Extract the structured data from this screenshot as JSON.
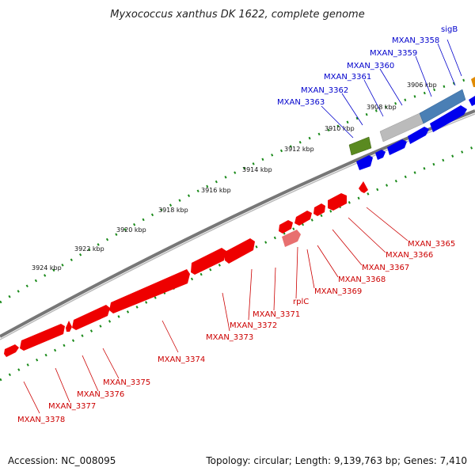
{
  "title": "Myxococcus xanthus DK 1622, complete genome",
  "footer": {
    "accession": "Accession: NC_008095",
    "stats": "Topology: circular; Length: 9,139,763 bp; Genes: 7,410"
  },
  "scale_ticks": [
    "3906 kbp",
    "3908 kbp",
    "3910 kbp",
    "3912 kbp",
    "3914 kbp",
    "3916 kbp",
    "3918 kbp",
    "3920 kbp",
    "3922 kbp",
    "3924 kbp"
  ],
  "forward_gene_labels": [
    "sigB",
    "MXAN_3358",
    "MXAN_3359",
    "MXAN_3360",
    "MXAN_3361",
    "MXAN_3362",
    "MXAN_3363"
  ],
  "reverse_gene_labels": [
    "MXAN_3365",
    "MXAN_3366",
    "MXAN_3367",
    "MXAN_3368",
    "MXAN_3369",
    "rplC",
    "MXAN_3371",
    "MXAN_3372",
    "MXAN_3373",
    "MXAN_3374",
    "MXAN_3375",
    "MXAN_3376",
    "MXAN_3377",
    "MXAN_3378"
  ],
  "colors": {
    "forward_gene": "#0000ee",
    "reverse_gene": "#ee0000",
    "highlight_gene": "#e87070",
    "backbone": "#888888",
    "scale_dots": "#1a8a1a",
    "blue_label": "#0000cc",
    "red_label": "#cc0000",
    "feature_green": "#5a8a20",
    "feature_gray": "#bbbbbb",
    "feature_steelblue": "#4a7fb5",
    "feature_orange": "#e08a00"
  }
}
